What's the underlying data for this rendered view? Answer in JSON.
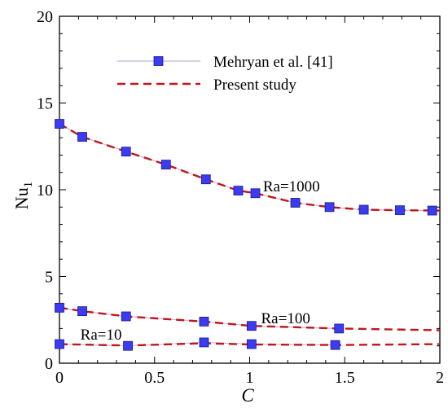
{
  "chart_data": {
    "type": "line",
    "xlabel": "C",
    "ylabel": "Nu",
    "ylabel_subscript": "1",
    "xlim": [
      0,
      2
    ],
    "ylim": [
      0,
      20
    ],
    "xticks": [
      0,
      0.5,
      1,
      1.5,
      2
    ],
    "xtick_labels": [
      "0",
      "0.5",
      "1",
      "1.5",
      "2"
    ],
    "yticks": [
      0,
      5,
      10,
      15,
      20
    ],
    "ytick_labels": [
      "0",
      "5",
      "10",
      "15",
      "20"
    ],
    "grid": false,
    "legend_position": "top-center",
    "legend": [
      "Mehryan et al. [41]",
      "Present study"
    ],
    "groups": [
      {
        "annotation": "Ra=1000",
        "annotation_anchor": [
          1.07,
          9.9
        ],
        "series": [
          {
            "name": "Mehryan et al. [41]",
            "style": "markers",
            "x": [
              0,
              0.12,
              0.35,
              0.56,
              0.77,
              0.94,
              1.03,
              1.24,
              1.42,
              1.6,
              1.79,
              1.96
            ],
            "y": [
              13.8,
              13.05,
              12.2,
              11.45,
              10.6,
              9.95,
              9.8,
              9.25,
              9.0,
              8.85,
              8.82,
              8.8
            ]
          },
          {
            "name": "Present study",
            "style": "dashed",
            "x": [
              0,
              0.12,
              0.35,
              0.56,
              0.77,
              0.94,
              1.03,
              1.24,
              1.42,
              1.6,
              1.79,
              2.0
            ],
            "y": [
              13.8,
              13.05,
              12.2,
              11.45,
              10.6,
              9.95,
              9.8,
              9.25,
              9.0,
              8.85,
              8.82,
              8.8
            ]
          }
        ]
      },
      {
        "annotation": "Ra=100",
        "annotation_anchor": [
          1.06,
          2.3
        ],
        "series": [
          {
            "name": "Mehryan et al. [41]",
            "style": "markers",
            "x": [
              0,
              0.12,
              0.35,
              0.76,
              1.01,
              1.47
            ],
            "y": [
              3.2,
              3.0,
              2.7,
              2.4,
              2.15,
              2.0
            ]
          },
          {
            "name": "Present study",
            "style": "dashed",
            "x": [
              0,
              0.12,
              0.35,
              0.76,
              1.01,
              1.47,
              2.0
            ],
            "y": [
              3.2,
              3.0,
              2.7,
              2.4,
              2.15,
              2.0,
              1.9
            ]
          }
        ]
      },
      {
        "annotation": "Ra=10",
        "annotation_anchor": [
          0.11,
          1.35
        ],
        "series": [
          {
            "name": "Mehryan et al. [41]",
            "style": "markers",
            "x": [
              0,
              0.36,
              0.76,
              1.01,
              1.45
            ],
            "y": [
              1.1,
              1.0,
              1.2,
              1.1,
              1.05
            ]
          },
          {
            "name": "Present study",
            "style": "dashed",
            "x": [
              0,
              0.36,
              0.76,
              1.01,
              1.45,
              2.0
            ],
            "y": [
              1.1,
              1.02,
              1.15,
              1.08,
              1.05,
              1.1
            ]
          }
        ]
      }
    ]
  },
  "style": {
    "marker_fill": "#3b3bf0",
    "marker_stroke": "#1a1a9a",
    "marker_line_color": "#b8bcd8",
    "dashed_color": "#c0161c"
  }
}
